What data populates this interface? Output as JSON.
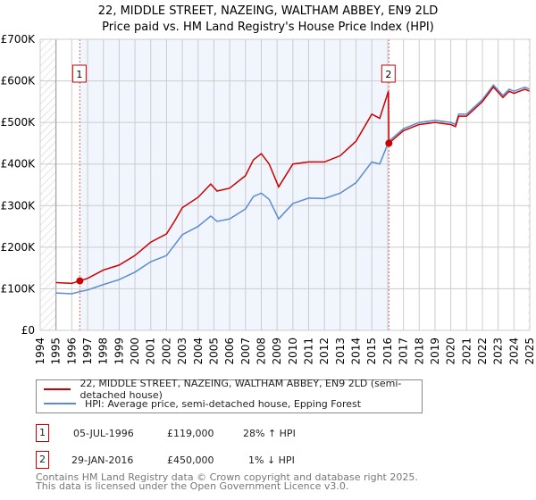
{
  "chart_data": {
    "type": "line",
    "title": "22, MIDDLE STREET, NAZEING, WALTHAM ABBEY, EN9 2LD",
    "subtitle": "Price paid vs. HM Land Registry's House Price Index (HPI)",
    "xlim": [
      1994,
      2025
    ],
    "ylim": [
      0,
      700000
    ],
    "y_ticks": [
      0,
      100000,
      200000,
      300000,
      400000,
      500000,
      600000,
      700000
    ],
    "y_tick_labels": [
      "£0",
      "£100K",
      "£200K",
      "£300K",
      "£400K",
      "£500K",
      "£600K",
      "£700K"
    ],
    "x_ticks": [
      1994,
      1995,
      1996,
      1997,
      1998,
      1999,
      2000,
      2001,
      2002,
      2003,
      2004,
      2005,
      2006,
      2007,
      2008,
      2009,
      2010,
      2011,
      2012,
      2013,
      2014,
      2015,
      2016,
      2017,
      2018,
      2019,
      2020,
      2021,
      2022,
      2023,
      2024,
      2025
    ],
    "grid": true,
    "series": [
      {
        "name": "22, MIDDLE STREET, NAZEING, WALTHAM ABBEY, EN9 2LD (semi-detached house)",
        "color": "#cc0000",
        "x": [
          1995,
          1996,
          1996.5,
          1997,
          1998,
          1999,
          2000,
          2001,
          2002,
          2002.5,
          2003,
          2004,
          2004.8,
          2005.2,
          2006,
          2007,
          2007.5,
          2008,
          2008.5,
          2009.1,
          2010,
          2011,
          2012,
          2013,
          2014,
          2015,
          2015.5,
          2016.05,
          2016.08,
          2017,
          2018,
          2019,
          2020,
          2020.3,
          2020.5,
          2021,
          2022,
          2022.7,
          2023.3,
          2023.7,
          2024,
          2024.7,
          2025
        ],
        "y": [
          115000,
          113000,
          119000,
          125000,
          145000,
          157000,
          180000,
          212000,
          232000,
          262000,
          295000,
          320000,
          352000,
          335000,
          342000,
          372000,
          410000,
          425000,
          400000,
          345000,
          400000,
          405000,
          405000,
          420000,
          455000,
          520000,
          510000,
          575000,
          450000,
          480000,
          495000,
          500000,
          495000,
          490000,
          515000,
          515000,
          550000,
          585000,
          560000,
          575000,
          570000,
          580000,
          575000
        ]
      },
      {
        "name": "HPI: Average price, semi-detached house, Epping Forest",
        "color": "#5b8bd0",
        "x": [
          1995,
          1996,
          1996.5,
          1997,
          1998,
          1999,
          2000,
          2001,
          2002,
          2002.5,
          2003,
          2004,
          2004.8,
          2005.2,
          2006,
          2007,
          2007.5,
          2008,
          2008.5,
          2009.1,
          2010,
          2011,
          2012,
          2013,
          2014,
          2015,
          2015.5,
          2016.08,
          2017,
          2018,
          2019,
          2020,
          2020.3,
          2020.5,
          2021,
          2022,
          2022.7,
          2023.3,
          2023.7,
          2024,
          2024.7,
          2025
        ],
        "y": [
          90000,
          88000,
          93000,
          97000,
          110000,
          122000,
          140000,
          165000,
          180000,
          205000,
          230000,
          250000,
          275000,
          262000,
          268000,
          292000,
          322000,
          330000,
          315000,
          268000,
          305000,
          318000,
          317000,
          330000,
          355000,
          405000,
          400000,
          455000,
          485000,
          500000,
          505000,
          500000,
          495000,
          520000,
          520000,
          555000,
          590000,
          565000,
          580000,
          575000,
          585000,
          580000
        ]
      }
    ],
    "sales": [
      {
        "id": "1",
        "x": 1996.51,
        "price": 119000,
        "date": "05-JUL-1996",
        "price_label": "£119,000",
        "hpi_diff": "28% ↑ HPI"
      },
      {
        "id": "2",
        "x": 2016.08,
        "price": 450000,
        "date": "29-JAN-2016",
        "price_label": "£450,000",
        "hpi_diff": "1% ↓ HPI"
      }
    ]
  },
  "footer": {
    "line1": "Contains HM Land Registry data © Crown copyright and database right 2025.",
    "line2": "This data is licensed under the Open Government Licence v3.0."
  }
}
